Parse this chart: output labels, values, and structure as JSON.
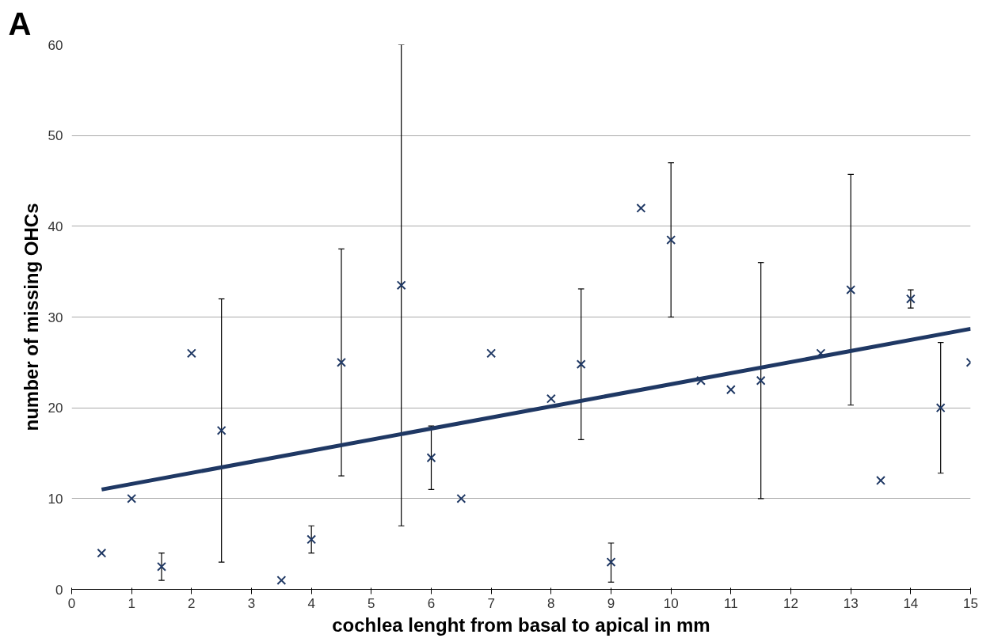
{
  "chart_data": {
    "type": "scatter",
    "xlabel": "cochlea lenght from basal to apical in mm",
    "ylabel": "number of missing OHCs",
    "annotations": [
      "A"
    ],
    "xlim": [
      0,
      15
    ],
    "ylim": [
      0,
      60
    ],
    "xticks": [
      0,
      1,
      2,
      3,
      4,
      5,
      6,
      7,
      8,
      9,
      10,
      11,
      12,
      13,
      14,
      15
    ],
    "yticks": [
      0,
      10,
      20,
      30,
      40,
      50,
      60
    ],
    "grid": "y",
    "marker": "cross",
    "series": [
      {
        "color": "#1f3864",
        "x": [
          0.5,
          1,
          1.5,
          2,
          2.5,
          3.5,
          4,
          4.5,
          5.5,
          6,
          6.5,
          7,
          8,
          8.5,
          9,
          9.5,
          10,
          10.5,
          11,
          11.5,
          12.5,
          13,
          13.5,
          14,
          14.5,
          15
        ],
        "values": [
          4,
          10,
          2.5,
          26,
          17.5,
          1,
          5.5,
          25,
          33.5,
          14.5,
          10,
          26,
          21,
          24.8,
          3,
          42,
          38.5,
          23,
          22,
          23,
          26,
          33,
          12,
          32,
          20,
          25
        ],
        "errors": [
          null,
          null,
          [
            1,
            4
          ],
          null,
          [
            3,
            32
          ],
          null,
          [
            4,
            7
          ],
          [
            12.5,
            37.5
          ],
          [
            7,
            60
          ],
          [
            11,
            18
          ],
          null,
          null,
          null,
          [
            16.5,
            33.1
          ],
          [
            0.8,
            5.1
          ],
          null,
          [
            30,
            47
          ],
          null,
          null,
          [
            10,
            36
          ],
          null,
          [
            20.3,
            45.7
          ],
          null,
          [
            31,
            33
          ],
          [
            12.8,
            27.2
          ],
          null
        ]
      },
      {
        "type": "line",
        "color": "#1f3864",
        "x": [
          0.5,
          15
        ],
        "values": [
          11,
          28.7
        ],
        "line_style": "solid",
        "marker": "none"
      }
    ]
  }
}
